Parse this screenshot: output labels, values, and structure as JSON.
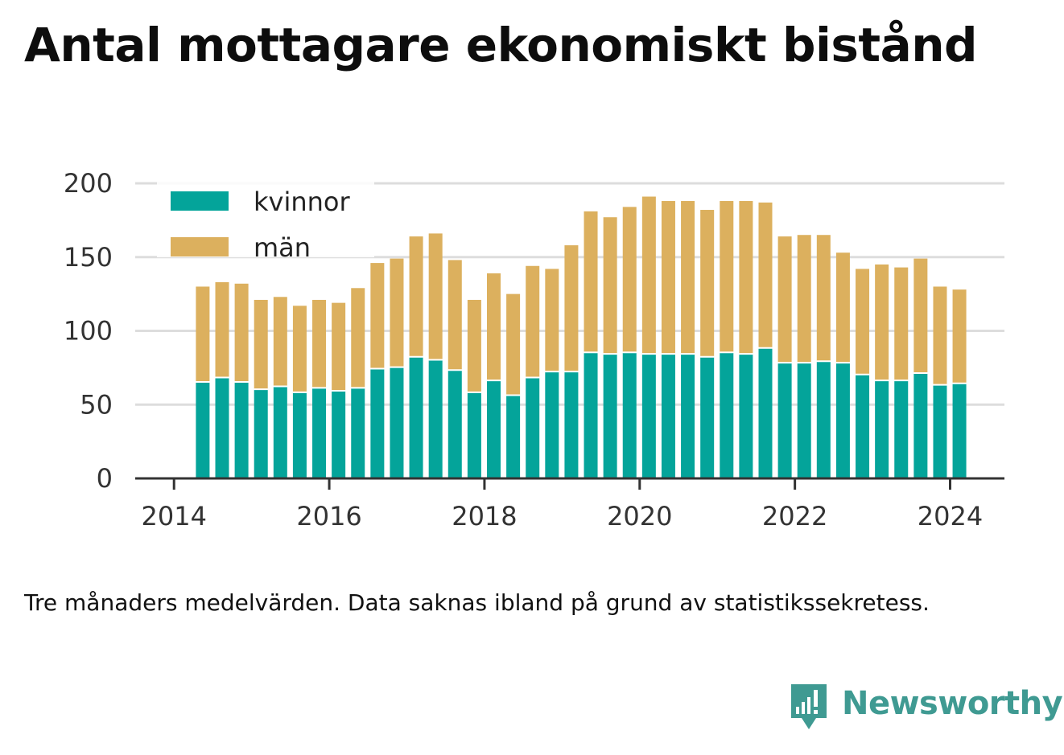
{
  "title": "Antal mottagare ekonomiskt bistånd",
  "caption": "Tre månaders medelvärden. Data saknas ibland på grund av statistikssekretess.",
  "brand": {
    "name": "Newsworthy",
    "color": "#3f9a92"
  },
  "colors": {
    "kvinnor": "#04a49a",
    "man": "#dcb05e",
    "grid": "#dddddd",
    "axis": "#333333"
  },
  "chart_data": {
    "type": "bar",
    "stacked": true,
    "title": "Antal mottagare ekonomiskt bistånd",
    "xlabel": "",
    "ylabel": "",
    "ylim": [
      0,
      200
    ],
    "yticks": [
      0,
      50,
      100,
      150,
      200
    ],
    "xticks": [
      2014,
      2016,
      2018,
      2020,
      2022,
      2024
    ],
    "xlim": [
      2013.5,
      2024.7
    ],
    "grid": true,
    "legend_position": "top-left",
    "x": [
      2014.37,
      2014.62,
      2014.87,
      2015.12,
      2015.37,
      2015.62,
      2015.87,
      2016.12,
      2016.37,
      2016.62,
      2016.87,
      2017.12,
      2017.37,
      2017.62,
      2017.87,
      2018.12,
      2018.37,
      2018.62,
      2018.87,
      2019.12,
      2019.37,
      2019.62,
      2019.87,
      2020.12,
      2020.37,
      2020.62,
      2020.87,
      2021.12,
      2021.37,
      2021.62,
      2021.87,
      2022.12,
      2022.37,
      2022.62,
      2022.87,
      2023.12,
      2023.37,
      2023.62,
      2023.87,
      2024.12
    ],
    "series": [
      {
        "name": "kvinnor",
        "color": "#04a49a",
        "values": [
          65,
          68,
          65,
          60,
          62,
          58,
          61,
          59,
          61,
          74,
          75,
          82,
          80,
          73,
          58,
          66,
          56,
          68,
          72,
          72,
          85,
          84,
          85,
          84,
          84,
          84,
          82,
          85,
          84,
          88,
          78,
          78,
          79,
          78,
          70,
          66,
          66,
          71,
          63,
          64
        ]
      },
      {
        "name": "män",
        "color": "#dcb05e",
        "values": [
          65,
          65,
          67,
          61,
          61,
          59,
          60,
          60,
          68,
          72,
          74,
          82,
          86,
          75,
          63,
          73,
          69,
          76,
          70,
          86,
          96,
          93,
          99,
          107,
          104,
          104,
          100,
          103,
          104,
          99,
          86,
          87,
          86,
          75,
          72,
          79,
          77,
          78,
          67,
          64
        ]
      }
    ]
  }
}
